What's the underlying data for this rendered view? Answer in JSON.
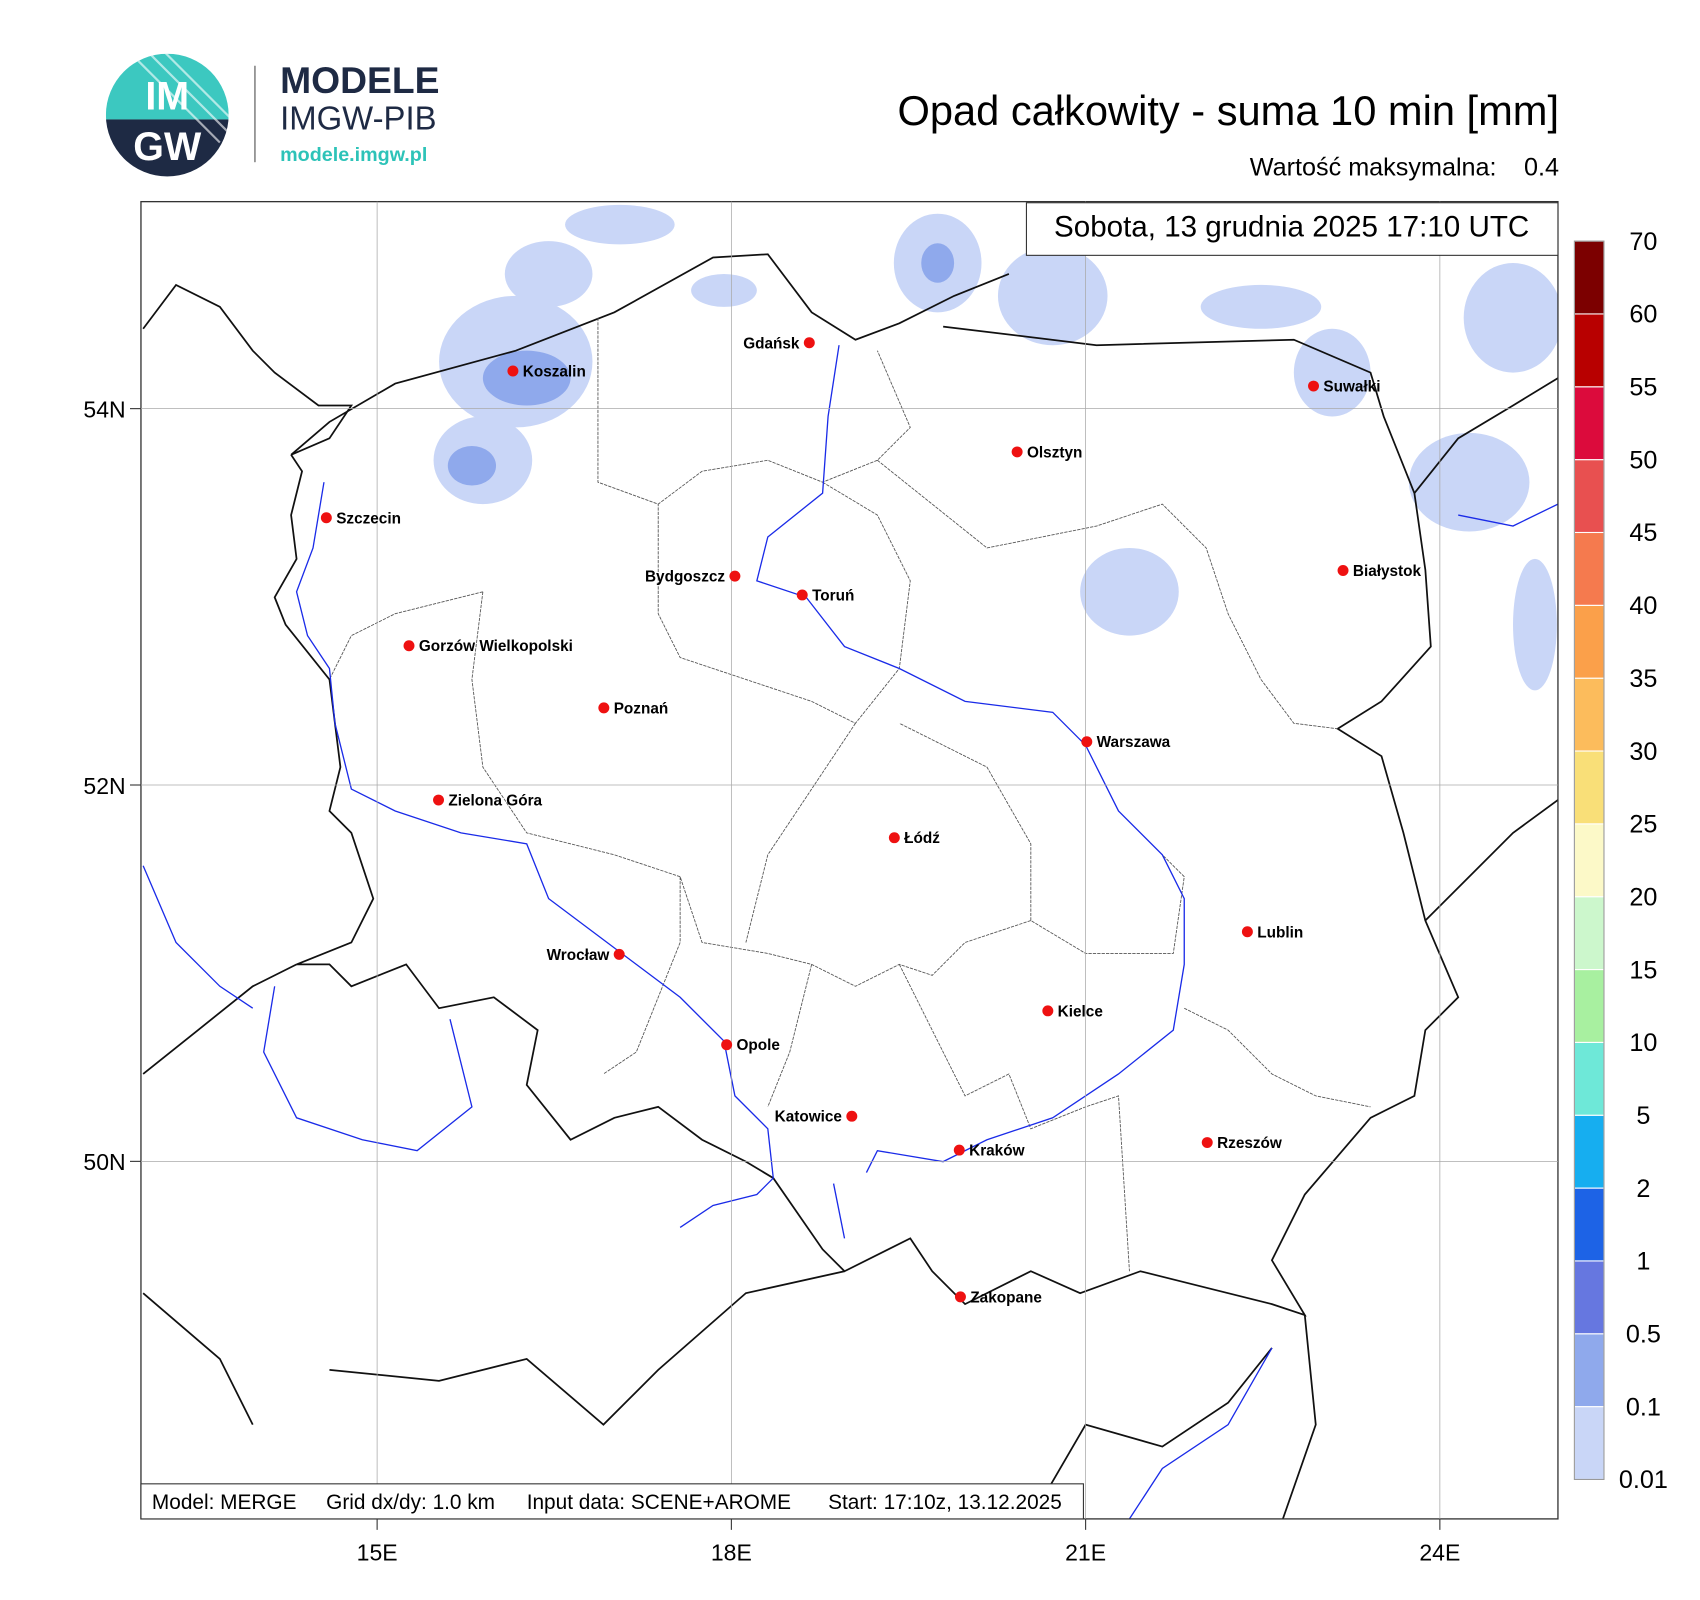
{
  "header": {
    "logo_top": "IM",
    "logo_bottom": "GW",
    "brand": "MODELE",
    "org": "IMGW-PIB",
    "url": "modele.imgw.pl"
  },
  "chart_data": {
    "type": "map",
    "title": "Opad całkowity - suma 10 min [mm]",
    "max_label": "Wartość maksymalna:",
    "max_value": 0.4,
    "valid_time": "Sobota, 13 grudnia 2025 17:10 UTC",
    "xlim": [
      13,
      25
    ],
    "ylim": [
      48.1,
      55.1
    ],
    "xticks": [
      {
        "value": 15,
        "label": "15E"
      },
      {
        "value": 18,
        "label": "18E"
      },
      {
        "value": 21,
        "label": "21E"
      },
      {
        "value": 24,
        "label": "24E"
      }
    ],
    "yticks": [
      {
        "value": 50,
        "label": "50N"
      },
      {
        "value": 52,
        "label": "52N"
      },
      {
        "value": 54,
        "label": "54N"
      }
    ],
    "grid": true,
    "city_color": "#ee1111",
    "cities": [
      {
        "name": "Koszalin",
        "lon": 16.15,
        "lat": 54.2
      },
      {
        "name": "Gdańsk",
        "lon": 18.66,
        "lat": 54.35
      },
      {
        "name": "Suwałki",
        "lon": 22.93,
        "lat": 54.12
      },
      {
        "name": "Olsztyn",
        "lon": 20.42,
        "lat": 53.77
      },
      {
        "name": "Szczecin",
        "lon": 14.57,
        "lat": 53.42
      },
      {
        "name": "Bydgoszcz",
        "lon": 18.03,
        "lat": 53.11
      },
      {
        "name": "Toruń",
        "lon": 18.6,
        "lat": 53.01
      },
      {
        "name": "Białystok",
        "lon": 23.18,
        "lat": 53.14
      },
      {
        "name": "Gorzów Wielkopolski",
        "lon": 15.27,
        "lat": 52.74
      },
      {
        "name": "Poznań",
        "lon": 16.92,
        "lat": 52.41
      },
      {
        "name": "Warszawa",
        "lon": 21.01,
        "lat": 52.23
      },
      {
        "name": "Zielona Góra",
        "lon": 15.52,
        "lat": 51.92
      },
      {
        "name": "Łódź",
        "lon": 19.38,
        "lat": 51.72
      },
      {
        "name": "Lublin",
        "lon": 22.37,
        "lat": 51.22
      },
      {
        "name": "Wrocław",
        "lon": 17.05,
        "lat": 51.1
      },
      {
        "name": "Kielce",
        "lon": 20.68,
        "lat": 50.8
      },
      {
        "name": "Opole",
        "lon": 17.96,
        "lat": 50.62
      },
      {
        "name": "Katowice",
        "lon": 19.02,
        "lat": 50.24
      },
      {
        "name": "Rzeszów",
        "lon": 22.03,
        "lat": 50.1
      },
      {
        "name": "Kraków",
        "lon": 19.93,
        "lat": 50.06
      },
      {
        "name": "Zakopane",
        "lon": 19.94,
        "lat": 49.28
      }
    ],
    "colorbar": {
      "levels": [
        0.01,
        0.1,
        0.5,
        1,
        2,
        5,
        10,
        15,
        20,
        25,
        30,
        35,
        40,
        45,
        50,
        55,
        60,
        70
      ],
      "colors": [
        "#c9d6f7",
        "#8fa9ec",
        "#6677e0",
        "#1d63e6",
        "#16aef0",
        "#6ee8d8",
        "#a8f0a0",
        "#ccf7cc",
        "#fcf9c8",
        "#f9df78",
        "#fcbc5c",
        "#fba04a",
        "#f57a4e",
        "#e85050",
        "#dc0b3c",
        "#b80000",
        "#7c0000"
      ]
    },
    "footer": [
      "Model: MERGE",
      "Grid dx/dy: 1.0 km",
      "Input data: SCENE+AROME",
      "Start: 17:10z, 13.12.2025"
    ]
  }
}
